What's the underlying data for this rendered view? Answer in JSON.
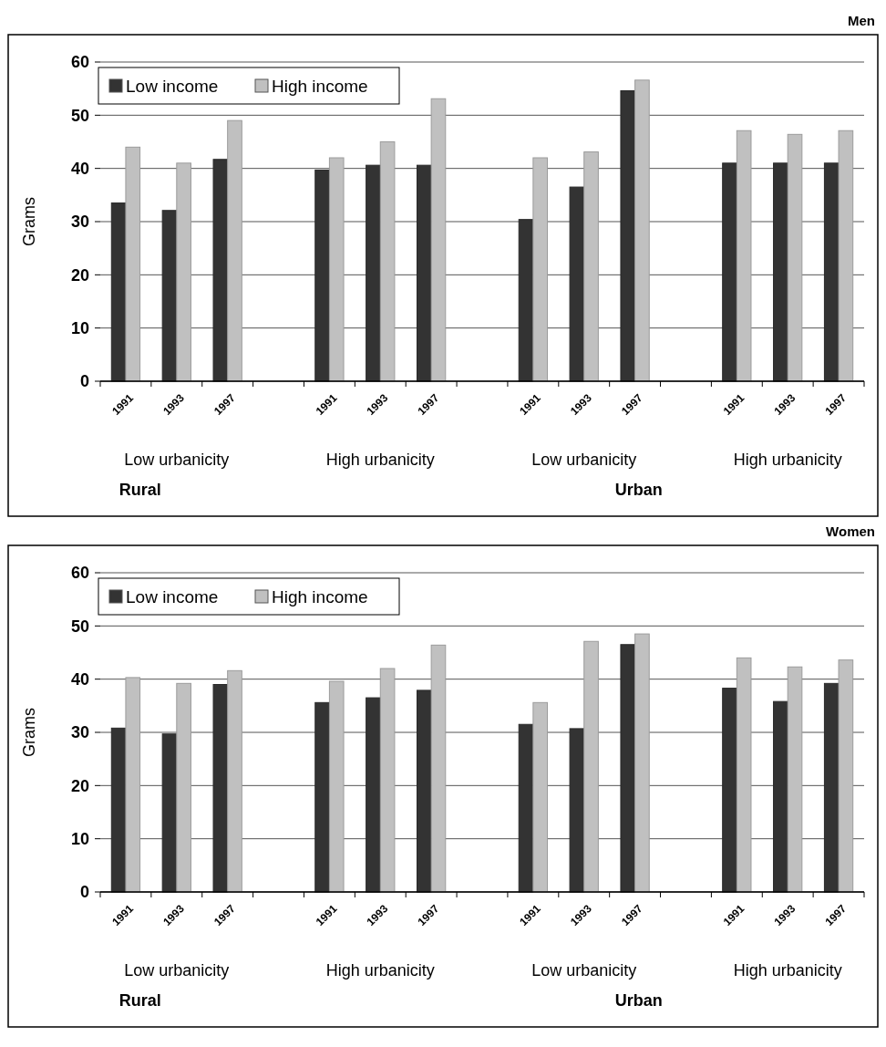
{
  "chart_data": [
    {
      "type": "bar",
      "title": "Men",
      "ylabel": "Grams",
      "categories": [
        "1991",
        "1993",
        "1997",
        null,
        "1991",
        "1993",
        "1997",
        null,
        "1991",
        "1993",
        "1997",
        null,
        "1991",
        "1993",
        "1997"
      ],
      "series": [
        {
          "name": "Low income",
          "color": "#333333",
          "values": [
            33.5,
            32.1,
            41.7,
            null,
            39.7,
            40.6,
            40.6,
            null,
            30.4,
            36.5,
            54.6,
            null,
            41,
            41,
            41
          ]
        },
        {
          "name": "High income",
          "color": "#c0c0c0",
          "values": [
            44,
            41,
            49,
            null,
            42,
            45,
            53.1,
            null,
            42,
            43.1,
            56.6,
            null,
            47.1,
            46.4,
            47.1
          ]
        }
      ],
      "ylim": [
        0,
        60
      ],
      "yticks": [
        0,
        10,
        20,
        30,
        40,
        50,
        60
      ],
      "grid": "y",
      "legend": "top left",
      "annotations": [
        "Low urbanicity",
        "High urbanicity",
        "Low urbanicity",
        "High urbanicity",
        "Rural",
        "Urban"
      ]
    },
    {
      "type": "bar",
      "title": "Women",
      "ylabel": "Grams",
      "categories": [
        "1991",
        "1993",
        "1997",
        null,
        "1991",
        "1993",
        "1997",
        null,
        "1991",
        "1993",
        "1997",
        null,
        "1991",
        "1993",
        "1997"
      ],
      "series": [
        {
          "name": "Low income",
          "color": "#333333",
          "values": [
            30.8,
            29.7,
            39,
            null,
            35.6,
            36.5,
            37.9,
            null,
            31.5,
            30.7,
            46.5,
            null,
            38.3,
            35.8,
            39.2
          ]
        },
        {
          "name": "High income",
          "color": "#c0c0c0",
          "values": [
            40.3,
            39.2,
            41.6,
            null,
            39.6,
            42,
            46.4,
            null,
            35.6,
            47.1,
            48.5,
            null,
            44,
            42.3,
            43.6
          ]
        }
      ],
      "ylim": [
        0,
        60
      ],
      "yticks": [
        0,
        10,
        20,
        30,
        40,
        50,
        60
      ],
      "grid": "y",
      "legend": "top left",
      "annotations": [
        "Low urbanicity",
        "High urbanicity",
        "Low urbanicity",
        "High urbanicity",
        "Rural",
        "Urban"
      ]
    }
  ]
}
